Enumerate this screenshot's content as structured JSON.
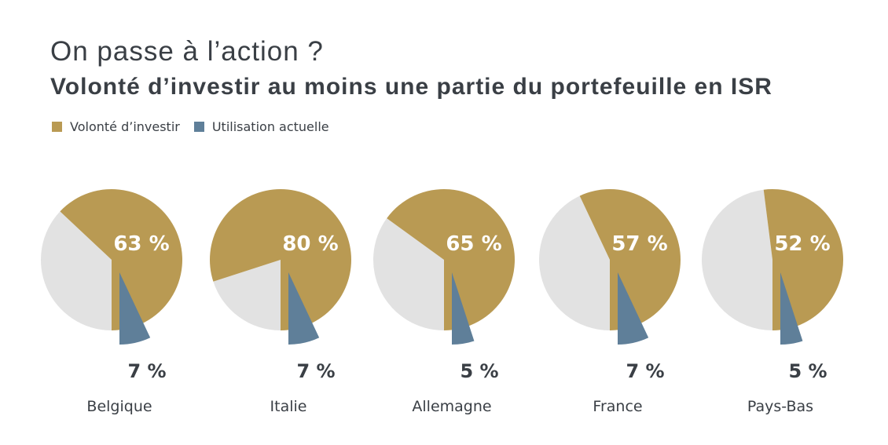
{
  "title": "On passe à l’action ?",
  "subtitle": "Volonté d’investir au moins une partie du portefeuille en ISR",
  "legend": [
    {
      "label": "Volonté d’investir",
      "color": "#b99a53"
    },
    {
      "label": "Utilisation actuelle",
      "color": "#5f7f99"
    }
  ],
  "colors": {
    "willingness": "#b99a53",
    "current": "#5f7f99",
    "rest": "#e2e2e2"
  },
  "chart_data": {
    "type": "pie",
    "series": [
      {
        "name": "Volonté d’investir",
        "values": [
          63,
          80,
          65,
          57,
          52
        ]
      },
      {
        "name": "Utilisation actuelle",
        "values": [
          7,
          7,
          5,
          7,
          5
        ]
      }
    ],
    "categories": [
      "Belgique",
      "Italie",
      "Allemagne",
      "France",
      "Pays-Bas"
    ],
    "labels_big": [
      "63 %",
      "80 %",
      "65 %",
      "57 %",
      "52 %"
    ],
    "labels_small": [
      "7 %",
      "7 %",
      "5 %",
      "7 %",
      "5 %"
    ]
  }
}
